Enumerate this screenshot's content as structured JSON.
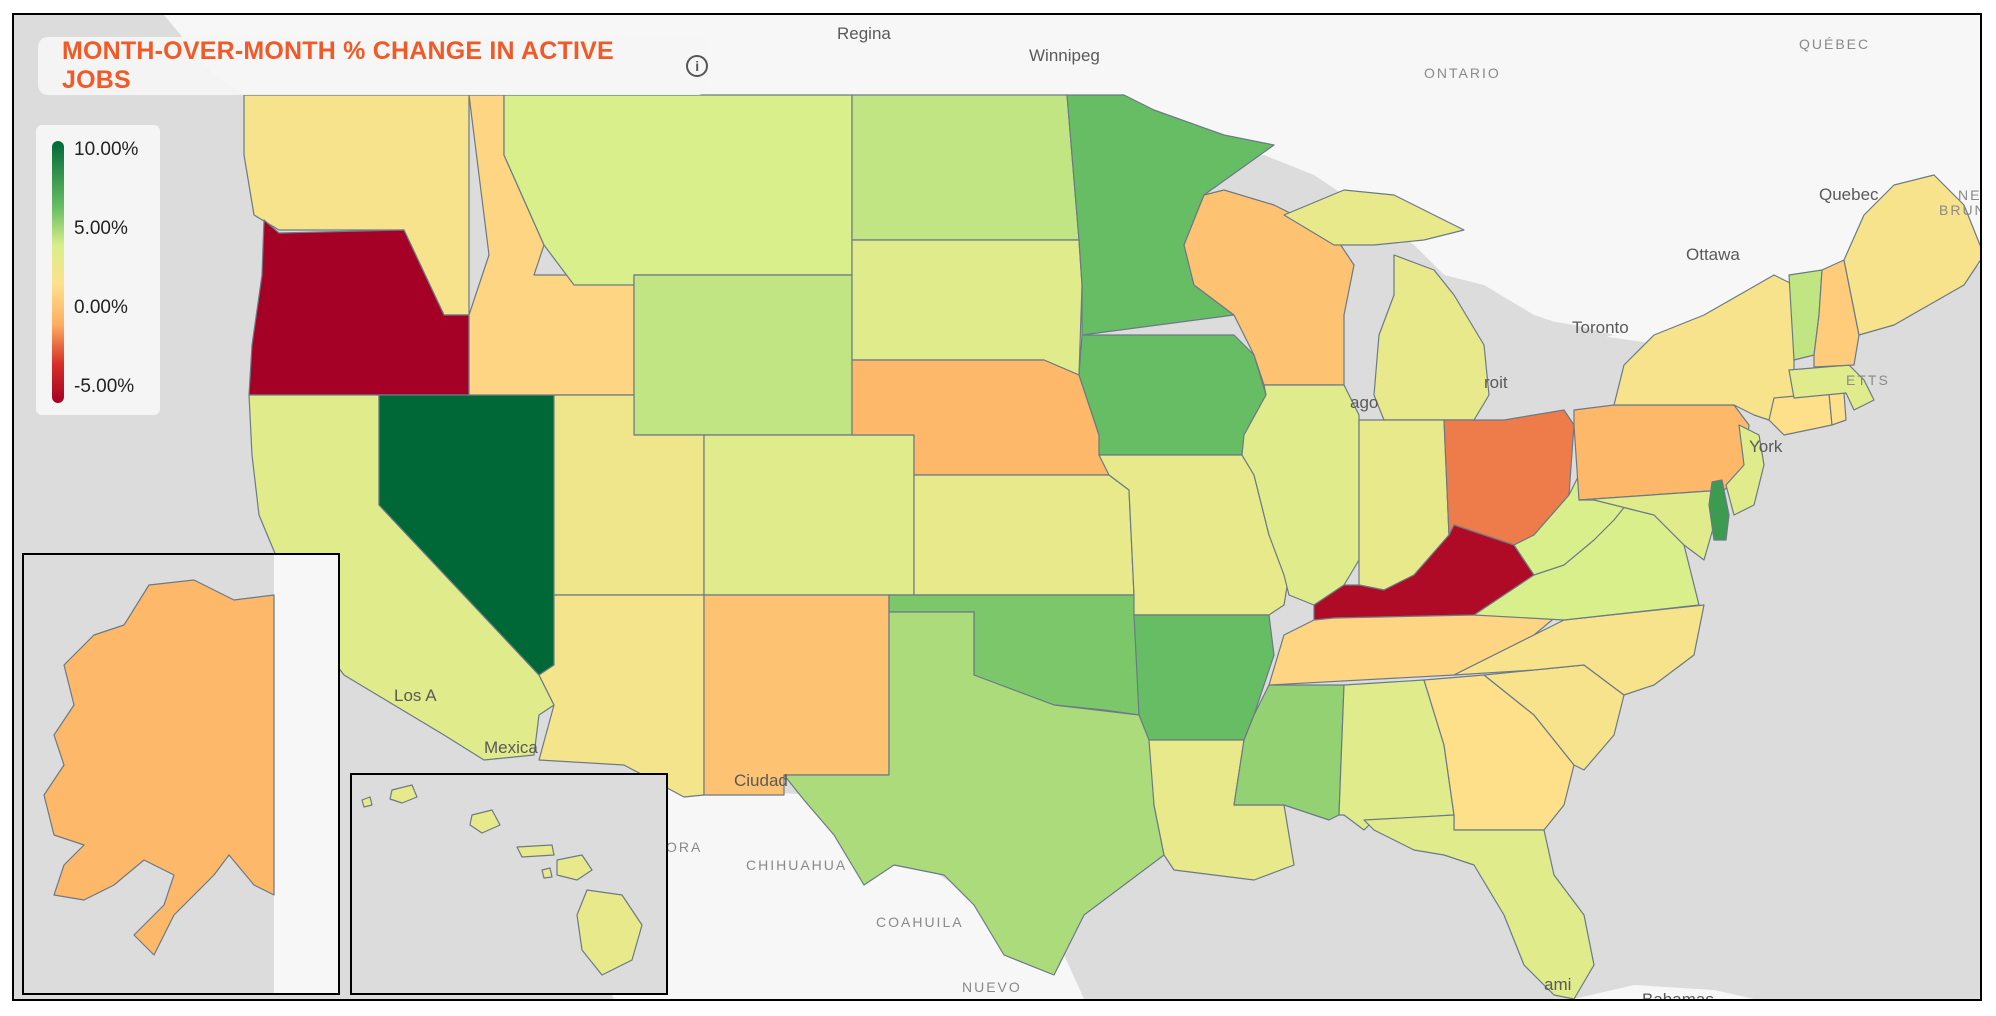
{
  "title": "MONTH-OVER-MONTH % CHANGE IN ACTIVE JOBS",
  "info_icon": "info-icon",
  "legend": {
    "labels": [
      "10.00%",
      "5.00%",
      "0.00%",
      "-5.00%"
    ],
    "max": 10,
    "min": -5,
    "colors": [
      "#006837",
      "#66bd63",
      "#d9ef8b",
      "#fee08b",
      "#fdae61",
      "#d73027",
      "#a50026"
    ]
  },
  "places": [
    "Regina",
    "Winnipeg",
    "ONTARIO",
    "QUÉBEC",
    "Quebec",
    "Ottawa",
    "Toronto",
    "roit",
    "ago",
    "York",
    "Los A",
    "Mexica",
    "Ciudad",
    "ORA",
    "CHIHUAHUA",
    "COAHUILA",
    "NUEVO",
    "ami",
    "Bahamas",
    "NE",
    "BRUN",
    "ETTS"
  ],
  "state_values": {
    "WA": 3.0,
    "OR": -5.0,
    "CA": 4.5,
    "NV": 10.0,
    "ID": 2.0,
    "MT": 5.0,
    "WY": 5.5,
    "UT": 3.5,
    "AZ": 3.2,
    "CO": 4.5,
    "NM": 1.0,
    "ND": 5.5,
    "SD": 4.5,
    "NE": 0.5,
    "KS": 4.0,
    "OK": 7.0,
    "TX": 6.0,
    "MN": 7.5,
    "IA": 7.5,
    "MO": 4.0,
    "AR": 7.5,
    "LA": 4.0,
    "WI": 1.0,
    "IL": 4.5,
    "MS": 6.5,
    "MI": 4.0,
    "IN": 4.0,
    "OH": -1.0,
    "KY": -4.5,
    "TN": 2.0,
    "AL": 4.5,
    "GA": 2.5,
    "FL": 4.5,
    "SC": 3.0,
    "NC": 3.0,
    "VA": 5.0,
    "WV": 5.0,
    "PA": 0.5,
    "NY": 3.0,
    "VT": 5.5,
    "NH": 1.5,
    "ME": 3.0,
    "MA": 4.5,
    "CT": 2.5,
    "RI": 2.5,
    "NJ": 4.5,
    "DE": 8.5,
    "MD": 4.5,
    "AK": 0.5,
    "HI": 4.0
  }
}
